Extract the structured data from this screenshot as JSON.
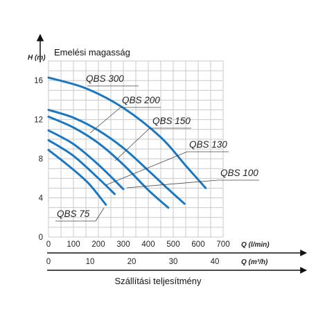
{
  "chart_data": {
    "type": "line",
    "title": "Emelési magasság",
    "xlabel": "Szállítási teljesítmény",
    "ylabel": "H (m)",
    "x_axis_primary_label": "Q (l/min)",
    "x_axis_secondary_label": "Q (m³/h)",
    "xlim": [
      0,
      700
    ],
    "ylim": [
      0,
      18
    ],
    "x_ticks": [
      "0",
      "100",
      "200",
      "300",
      "400",
      "500",
      "600",
      "700"
    ],
    "x2_ticks": [
      "0",
      "10",
      "20",
      "30",
      "40"
    ],
    "y_ticks": [
      "0",
      "4",
      "8",
      "12",
      "16"
    ],
    "grid": true,
    "series": [
      {
        "name": "QBS 300",
        "x": [
          0,
          150,
          300,
          450,
          550,
          630
        ],
        "y": [
          16.3,
          15.2,
          13.2,
          10.2,
          7.3,
          5.0
        ]
      },
      {
        "name": "QBS 200",
        "x": [
          0,
          100,
          200,
          300,
          400,
          480,
          545
        ],
        "y": [
          13.0,
          12.2,
          10.9,
          9.1,
          6.8,
          4.9,
          3.4
        ]
      },
      {
        "name": "QBS 150",
        "x": [
          0,
          100,
          200,
          300,
          400,
          480
        ],
        "y": [
          12.3,
          11.2,
          9.6,
          7.4,
          4.8,
          3.0
        ]
      },
      {
        "name": "QBS 130",
        "x": [
          0,
          100,
          200,
          300
        ],
        "y": [
          10.9,
          9.5,
          7.4,
          4.9
        ]
      },
      {
        "name": "QBS 100",
        "x": [
          0,
          100,
          200,
          265
        ],
        "y": [
          9.9,
          8.3,
          6.0,
          4.4
        ]
      },
      {
        "name": "QBS 75",
        "x": [
          0,
          80,
          160,
          230
        ],
        "y": [
          8.9,
          7.3,
          5.5,
          3.3
        ]
      }
    ]
  }
}
